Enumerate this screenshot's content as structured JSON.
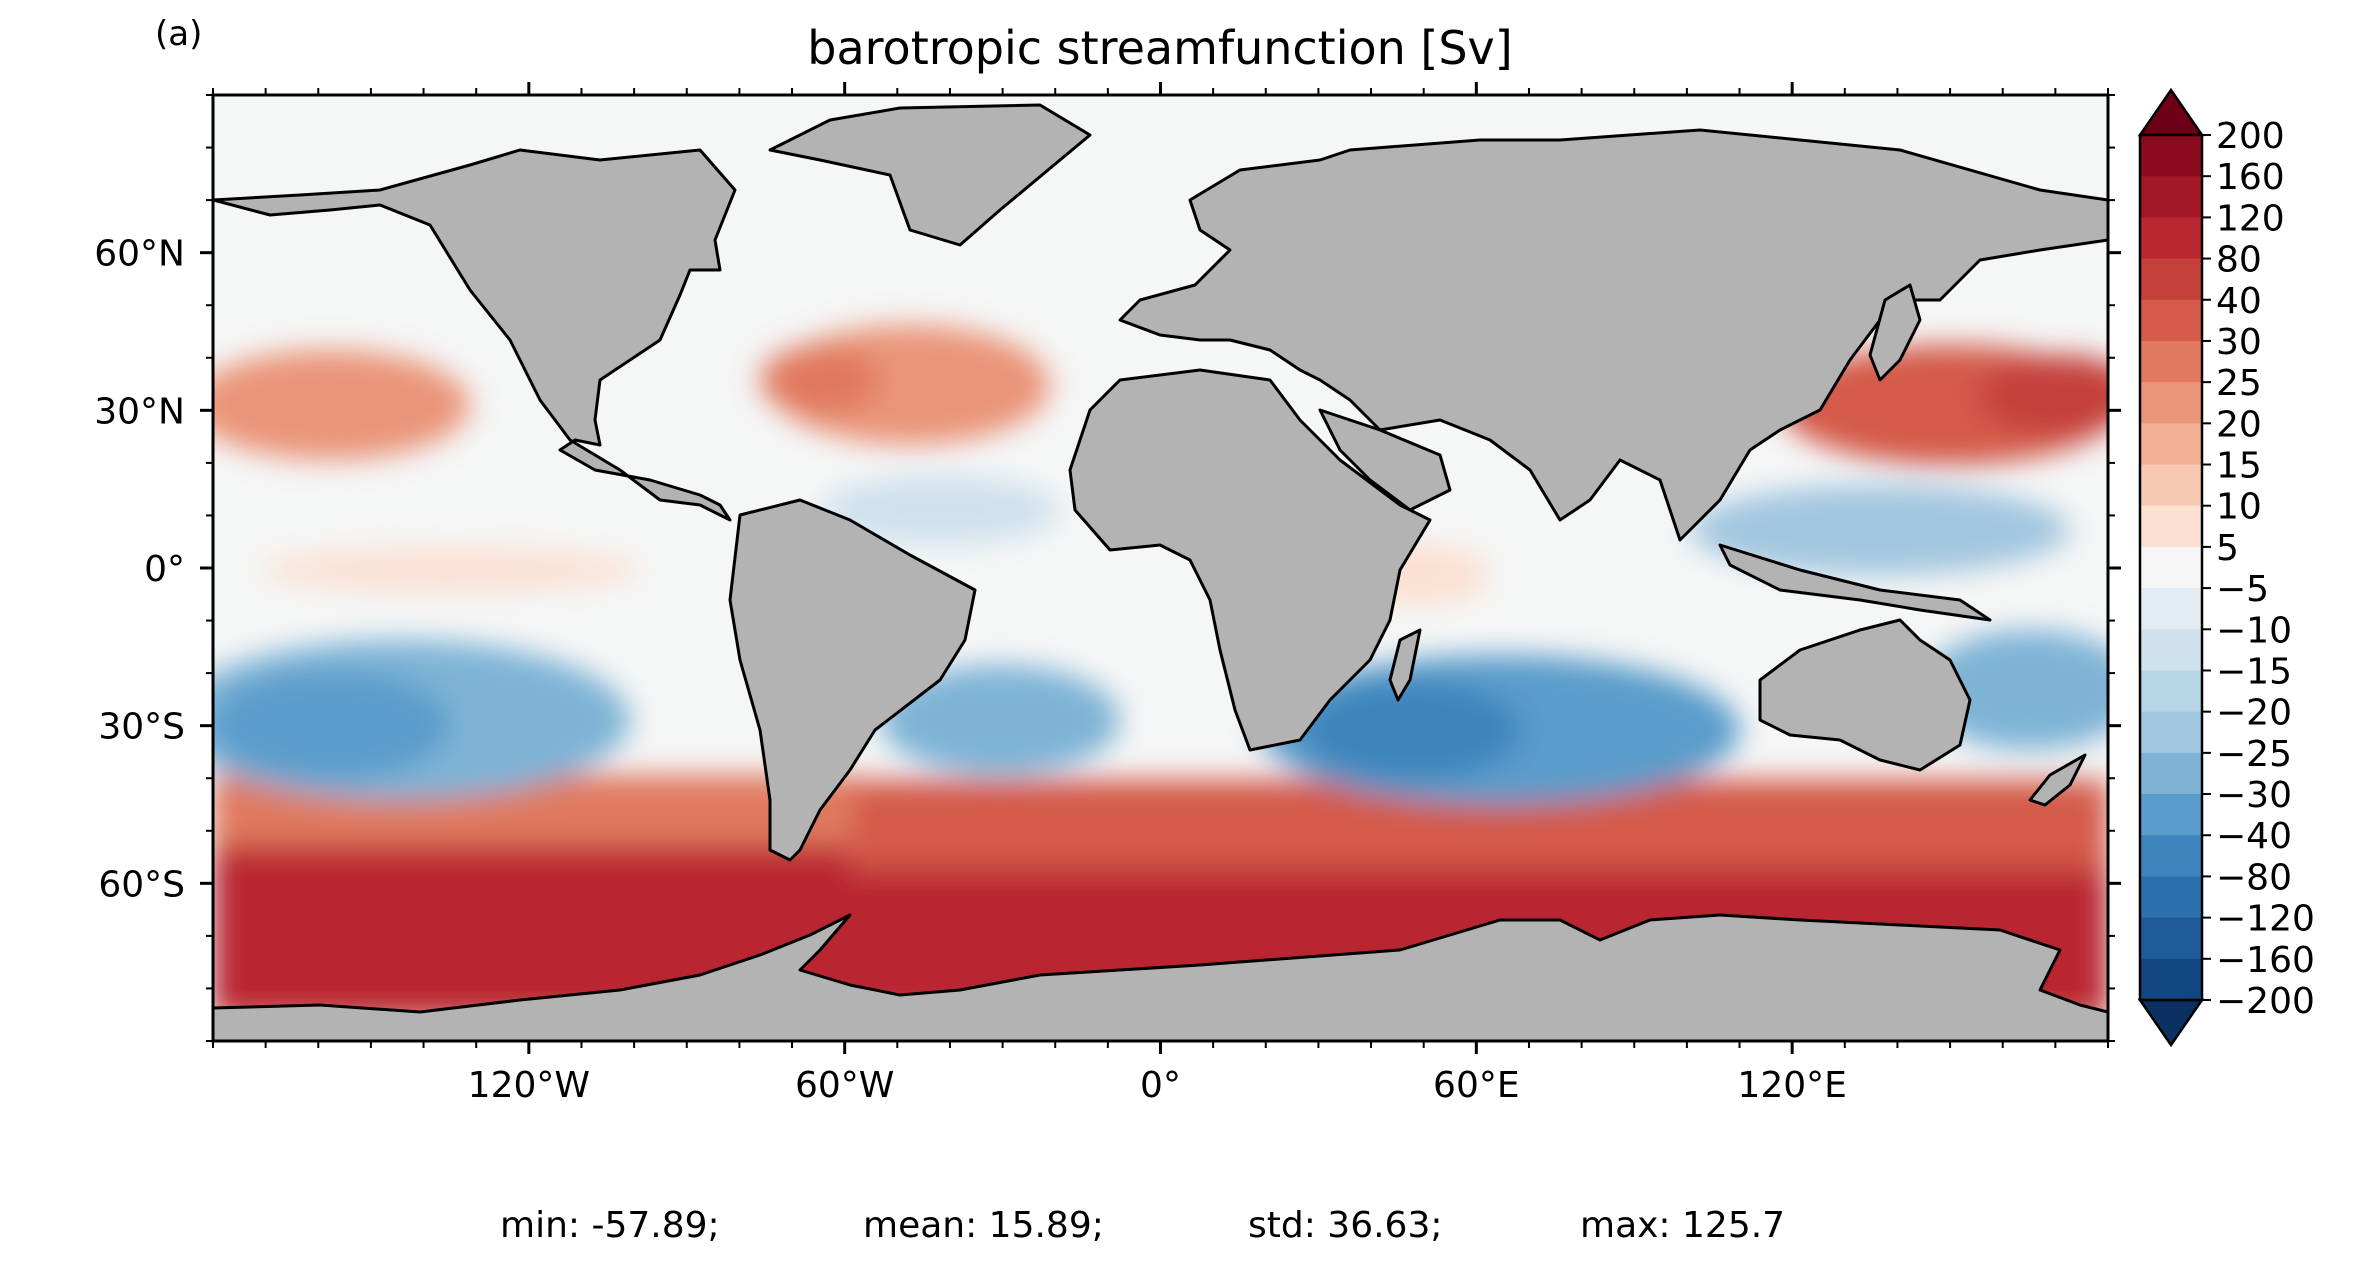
{
  "panel_label": "(a)",
  "title": "barotropic streamfunction [Sv]",
  "map": {
    "projection": "PlateCarree",
    "x_ticks": [
      {
        "lon": -120,
        "label": "120°W"
      },
      {
        "lon": -60,
        "label": "60°W"
      },
      {
        "lon": 0,
        "label": "0°"
      },
      {
        "lon": 60,
        "label": "60°E"
      },
      {
        "lon": 120,
        "label": "120°E"
      }
    ],
    "y_ticks": [
      {
        "lat": 60,
        "label": "60°N"
      },
      {
        "lat": 30,
        "label": "30°N"
      },
      {
        "lat": 0,
        "label": "0°"
      },
      {
        "lat": -30,
        "label": "30°S"
      },
      {
        "lat": -60,
        "label": "60°S"
      }
    ],
    "lon_range": [
      -180,
      180
    ],
    "lat_range": [
      -90,
      90
    ],
    "land_color": "#b3b3b3",
    "ocean_background": "#f5f6f6"
  },
  "colorbar": {
    "labels": [
      "200",
      "160",
      "120",
      "80",
      "40",
      "30",
      "25",
      "20",
      "15",
      "10",
      "5",
      "−5",
      "−10",
      "−15",
      "−20",
      "−25",
      "−30",
      "−40",
      "−80",
      "−120",
      "−160",
      "−200"
    ],
    "colors_top_to_bottom": [
      "#8a0a1f",
      "#a31828",
      "#b92830",
      "#c4403b",
      "#d45a49",
      "#e0795f",
      "#ea9478",
      "#f3b094",
      "#f8c9b2",
      "#fbe0d2",
      "#f6f6f6",
      "#e3ecf3",
      "#cfe1ed",
      "#b8d4e7",
      "#a1c6df",
      "#7eb3d6",
      "#5a9ccb",
      "#3d85bc",
      "#2d70ae",
      "#1f5b99",
      "#124680"
    ],
    "extend_max_color": "#6b0016",
    "extend_min_color": "#0b3062"
  },
  "stats": {
    "min": "min: -57.89;",
    "mean": "mean: 15.89;",
    "std": "std: 36.63;",
    "max": "max: 125.7"
  }
}
